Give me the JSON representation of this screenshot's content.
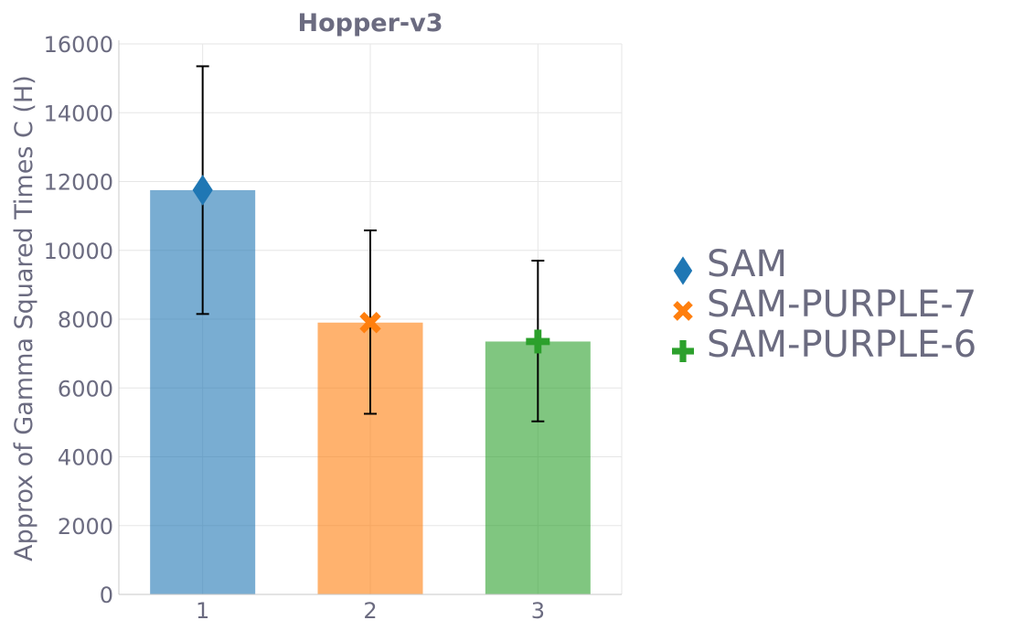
{
  "chart_data": {
    "type": "bar",
    "title": "Hopper-v3",
    "xlabel": "",
    "ylabel": "Approx of Gamma Squared Times C (H)",
    "categories": [
      "1",
      "2",
      "3"
    ],
    "ylim": [
      0,
      16000
    ],
    "yticks": [
      0,
      2000,
      4000,
      6000,
      8000,
      10000,
      12000,
      14000,
      16000
    ],
    "grid": true,
    "legend_position": "right",
    "series": [
      {
        "name": "SAM",
        "category": "1",
        "value": 11750,
        "error_low": 8150,
        "error_high": 15350,
        "color": "#1f77b4",
        "marker": "diamond"
      },
      {
        "name": "SAM-PURPLE-7",
        "category": "2",
        "value": 7900,
        "error_low": 5250,
        "error_high": 10580,
        "color": "#ff7f0e",
        "marker": "x"
      },
      {
        "name": "SAM-PURPLE-6",
        "category": "3",
        "value": 7350,
        "error_low": 5030,
        "error_high": 9700,
        "color": "#2ca02c",
        "marker": "cross"
      }
    ]
  }
}
